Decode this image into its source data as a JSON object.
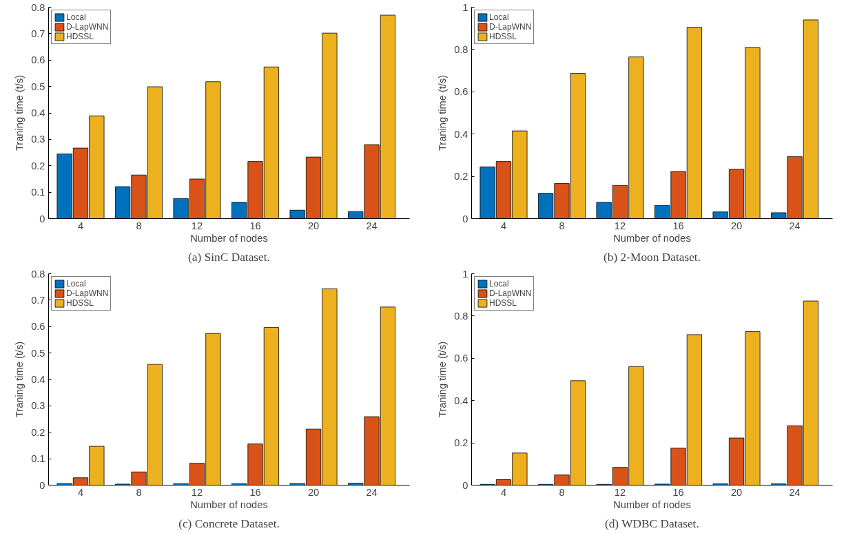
{
  "chart_data": [
    {
      "type": "bar",
      "title": "(a) SinC Dataset.",
      "xlabel": "Number of nodes",
      "ylabel": "Traning time (t/s)",
      "categories": [
        "4",
        "8",
        "12",
        "16",
        "20",
        "24"
      ],
      "ylim": [
        0,
        0.8
      ],
      "yticks": [
        0,
        0.1,
        0.2,
        0.3,
        0.4,
        0.5,
        0.6,
        0.7,
        0.8
      ],
      "legend": "top left",
      "grid": false,
      "series": [
        {
          "name": "Local",
          "color": "#0072bd",
          "values": [
            0.245,
            0.121,
            0.076,
            0.062,
            0.032,
            0.027
          ]
        },
        {
          "name": "D-LapWNN",
          "color": "#d95319",
          "values": [
            0.267,
            0.165,
            0.15,
            0.216,
            0.233,
            0.28
          ]
        },
        {
          "name": "HDSSL",
          "color": "#edb120",
          "values": [
            0.389,
            0.499,
            0.518,
            0.574,
            0.702,
            0.77
          ]
        }
      ]
    },
    {
      "type": "bar",
      "title": "(b) 2-Moon Dataset.",
      "xlabel": "Number of nodes",
      "ylabel": "Traning time (t/s)",
      "categories": [
        "4",
        "8",
        "12",
        "16",
        "20",
        "24"
      ],
      "ylim": [
        0,
        1
      ],
      "yticks": [
        0,
        0.2,
        0.4,
        0.6,
        0.8,
        1
      ],
      "legend": "top left",
      "grid": false,
      "series": [
        {
          "name": "Local",
          "color": "#0072bd",
          "values": [
            0.245,
            0.12,
            0.077,
            0.062,
            0.032,
            0.028
          ]
        },
        {
          "name": "D-LapWNN",
          "color": "#d95319",
          "values": [
            0.27,
            0.166,
            0.157,
            0.223,
            0.234,
            0.293
          ]
        },
        {
          "name": "HDSSL",
          "color": "#edb120",
          "values": [
            0.415,
            0.687,
            0.765,
            0.905,
            0.81,
            0.94
          ]
        }
      ]
    },
    {
      "type": "bar",
      "title": "(c) Concrete Dataset.",
      "xlabel": "Number of nodes",
      "ylabel": "Traning time (t/s)",
      "categories": [
        "4",
        "8",
        "12",
        "16",
        "20",
        "24"
      ],
      "ylim": [
        0,
        0.8
      ],
      "yticks": [
        0,
        0.1,
        0.2,
        0.3,
        0.4,
        0.5,
        0.6,
        0.7,
        0.8
      ],
      "legend": "top left",
      "grid": false,
      "series": [
        {
          "name": "Local",
          "color": "#0072bd",
          "values": [
            0.006,
            0.004,
            0.005,
            0.005,
            0.006,
            0.007
          ]
        },
        {
          "name": "D-LapWNN",
          "color": "#d95319",
          "values": [
            0.028,
            0.05,
            0.083,
            0.156,
            0.212,
            0.259
          ]
        },
        {
          "name": "HDSSL",
          "color": "#edb120",
          "values": [
            0.147,
            0.457,
            0.574,
            0.597,
            0.743,
            0.674
          ]
        }
      ]
    },
    {
      "type": "bar",
      "title": "(d) WDBC Dataset.",
      "xlabel": "Number of nodes",
      "ylabel": "Traning time (t/s)",
      "categories": [
        "4",
        "8",
        "12",
        "16",
        "20",
        "24"
      ],
      "ylim": [
        0,
        1
      ],
      "yticks": [
        0,
        0.2,
        0.4,
        0.6,
        0.8,
        1
      ],
      "legend": "top left",
      "grid": false,
      "series": [
        {
          "name": "Local",
          "color": "#0072bd",
          "values": [
            0.004,
            0.004,
            0.004,
            0.005,
            0.006,
            0.006
          ]
        },
        {
          "name": "D-LapWNN",
          "color": "#d95319",
          "values": [
            0.026,
            0.048,
            0.084,
            0.175,
            0.223,
            0.281
          ]
        },
        {
          "name": "HDSSL",
          "color": "#edb120",
          "values": [
            0.152,
            0.494,
            0.561,
            0.712,
            0.726,
            0.871
          ]
        }
      ]
    }
  ]
}
